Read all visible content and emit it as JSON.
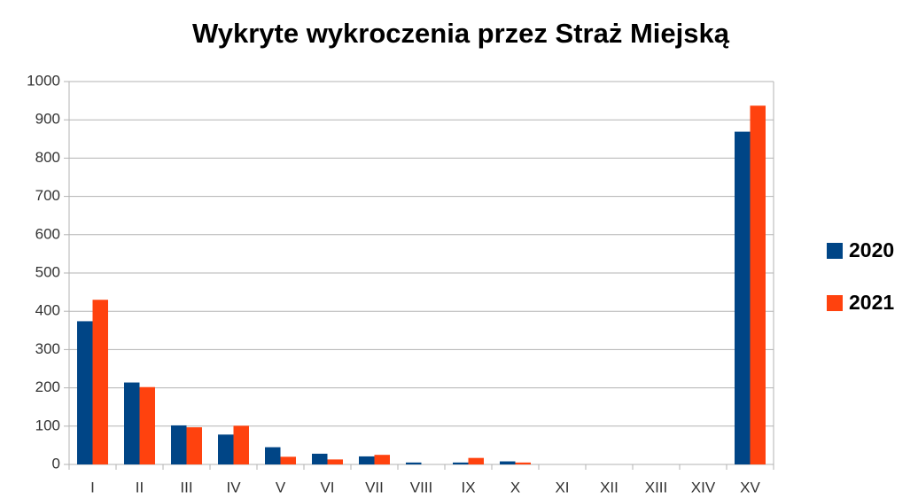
{
  "chart_data": {
    "type": "bar",
    "title": "Wykryte wykroczenia przez Straż Miejską",
    "categories": [
      "I",
      "II",
      "III",
      "IV",
      "V",
      "VI",
      "VII",
      "VIII",
      "IX",
      "X",
      "XI",
      "XII",
      "XIII",
      "XIV",
      "XV"
    ],
    "series": [
      {
        "name": "2020",
        "color": "#004586",
        "values": [
          374,
          214,
          102,
          78,
          45,
          28,
          21,
          5,
          5,
          8,
          0,
          0,
          0,
          0,
          869
        ]
      },
      {
        "name": "2021",
        "color": "#ff420e",
        "values": [
          430,
          202,
          97,
          101,
          20,
          13,
          25,
          0,
          17,
          5,
          0,
          0,
          0,
          0,
          937
        ]
      }
    ],
    "ylim": [
      0,
      1000
    ],
    "yticks": [
      0,
      100,
      200,
      300,
      400,
      500,
      600,
      700,
      800,
      900,
      1000
    ],
    "grid": true,
    "legend": "right"
  }
}
